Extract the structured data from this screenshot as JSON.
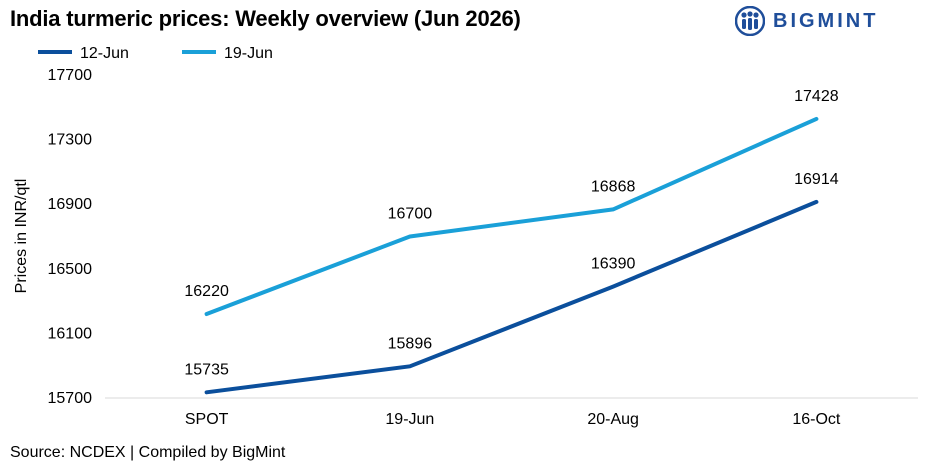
{
  "header": {
    "title": "India turmeric prices: Weekly overview (Jun 2026)",
    "logo_text": "BIGMINT",
    "logo_icon": "bigmint-logo-icon",
    "brand_color": "#1f4e9a"
  },
  "footer": {
    "source": "Source: NCDEX | Compiled by BigMint"
  },
  "chart_data": {
    "type": "line",
    "categories": [
      "SPOT",
      "19-Jun",
      "20-Aug",
      "16-Oct"
    ],
    "series": [
      {
        "name": "12-Jun",
        "color": "#0b4f9c",
        "values": [
          15735,
          15896,
          16390,
          16914
        ]
      },
      {
        "name": "19-Jun",
        "color": "#1aa0d8",
        "values": [
          16220,
          16700,
          16868,
          17428
        ]
      }
    ],
    "ylabel": "Prices in INR/qtl",
    "xlabel": "",
    "ylim": [
      15700,
      17700
    ],
    "yticks": [
      15700,
      16100,
      16500,
      16900,
      17300,
      17700
    ],
    "grid": false,
    "legend_position": "top-left",
    "data_labels": true
  }
}
